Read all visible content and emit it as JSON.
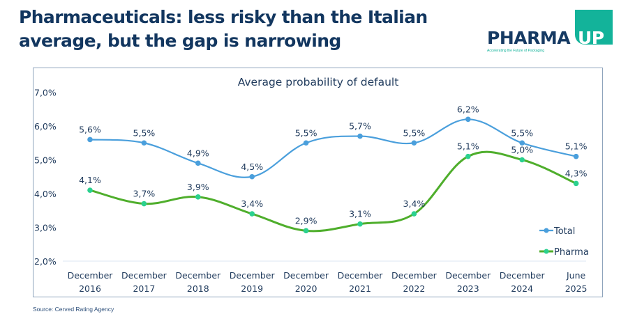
{
  "page": {
    "title_line1": "Pharmaceuticals: less risky than the Italian",
    "title_line2": "average, but the gap is narrowing",
    "source": "Source: Cerved Rating Agency"
  },
  "logo": {
    "brand_main": "PHARMA",
    "brand_accent": "UP",
    "tagline": "Accelerating the Future of Packaging",
    "accent_color": "#13b39a",
    "main_color": "#163a63"
  },
  "chart_data": {
    "type": "line",
    "title": "Average probability of default",
    "xlabel": "",
    "ylabel": "",
    "categories": [
      [
        "December",
        "2016"
      ],
      [
        "December",
        "2017"
      ],
      [
        "December",
        "2018"
      ],
      [
        "December",
        "2019"
      ],
      [
        "December",
        "2020"
      ],
      [
        "December",
        "2021"
      ],
      [
        "December",
        "2022"
      ],
      [
        "December",
        "2023"
      ],
      [
        "December",
        "2024"
      ],
      [
        "June",
        "2025"
      ]
    ],
    "ylim": [
      2.0,
      7.0
    ],
    "yticks": [
      "2,0%",
      "3,0%",
      "4,0%",
      "5,0%",
      "6,0%",
      "7,0%"
    ],
    "ytick_values": [
      2,
      3,
      4,
      5,
      6,
      7
    ],
    "grid": false,
    "smooth": true,
    "legend_position": "bottom-right",
    "series": [
      {
        "name": "Total",
        "color": "#4a9fdc",
        "marker_color": "#4a9fdc",
        "values": [
          5.6,
          5.5,
          4.9,
          4.5,
          5.5,
          5.7,
          5.5,
          6.2,
          5.5,
          5.1
        ],
        "labels": [
          "5,6%",
          "5,5%",
          "4,9%",
          "4,5%",
          "5,5%",
          "5,7%",
          "5,5%",
          "6,2%",
          "5,5%",
          "5,1%"
        ]
      },
      {
        "name": "Pharma",
        "color": "#4fae2c",
        "marker_color": "#2bd18f",
        "values": [
          4.1,
          3.7,
          3.9,
          3.4,
          2.9,
          3.1,
          3.4,
          5.1,
          5.0,
          4.3
        ],
        "labels": [
          "4,1%",
          "3,7%",
          "3,9%",
          "3,4%",
          "2,9%",
          "3,1%",
          "3,4%",
          "5,1%",
          "5,0%",
          "4,3%"
        ]
      }
    ]
  }
}
